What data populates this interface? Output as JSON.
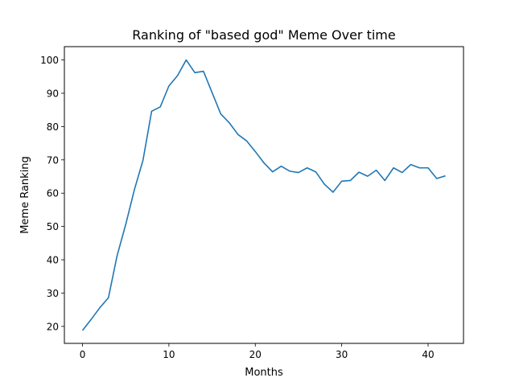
{
  "chart_data": {
    "type": "line",
    "title": "Ranking of \"based god\" Meme Over time",
    "xlabel": "Months",
    "ylabel": "Meme Ranking",
    "xlim": [
      -2.1,
      44.1
    ],
    "ylim": [
      14.9,
      104.0
    ],
    "xticks": [
      0,
      10,
      20,
      30,
      40
    ],
    "yticks": [
      20,
      30,
      40,
      50,
      60,
      70,
      80,
      90,
      100
    ],
    "line_color": "#1f77b4",
    "grid": false,
    "series": [
      {
        "x": [
          0,
          1,
          2,
          3,
          4,
          5,
          6,
          7,
          8,
          9,
          10,
          11,
          12,
          13,
          14,
          15,
          16,
          17,
          18,
          19,
          20,
          21,
          22,
          23,
          24,
          25,
          26,
          27,
          28,
          29,
          30,
          31,
          32,
          33,
          34,
          35,
          36,
          37,
          38,
          39,
          40,
          41,
          42
        ],
        "values": [
          18.8,
          22.1,
          25.6,
          28.6,
          41.2,
          50.6,
          61.0,
          69.9,
          84.6,
          85.9,
          92.2,
          95.3,
          100.0,
          96.2,
          96.6,
          90.2,
          83.8,
          81.1,
          77.6,
          75.7,
          72.5,
          69.1,
          66.4,
          68.1,
          66.6,
          66.2,
          67.6,
          66.4,
          62.7,
          60.3,
          63.6,
          63.8,
          66.3,
          65.1,
          66.9,
          63.8,
          67.6,
          66.2,
          68.6,
          67.6,
          67.6,
          64.4,
          65.2
        ]
      }
    ]
  }
}
